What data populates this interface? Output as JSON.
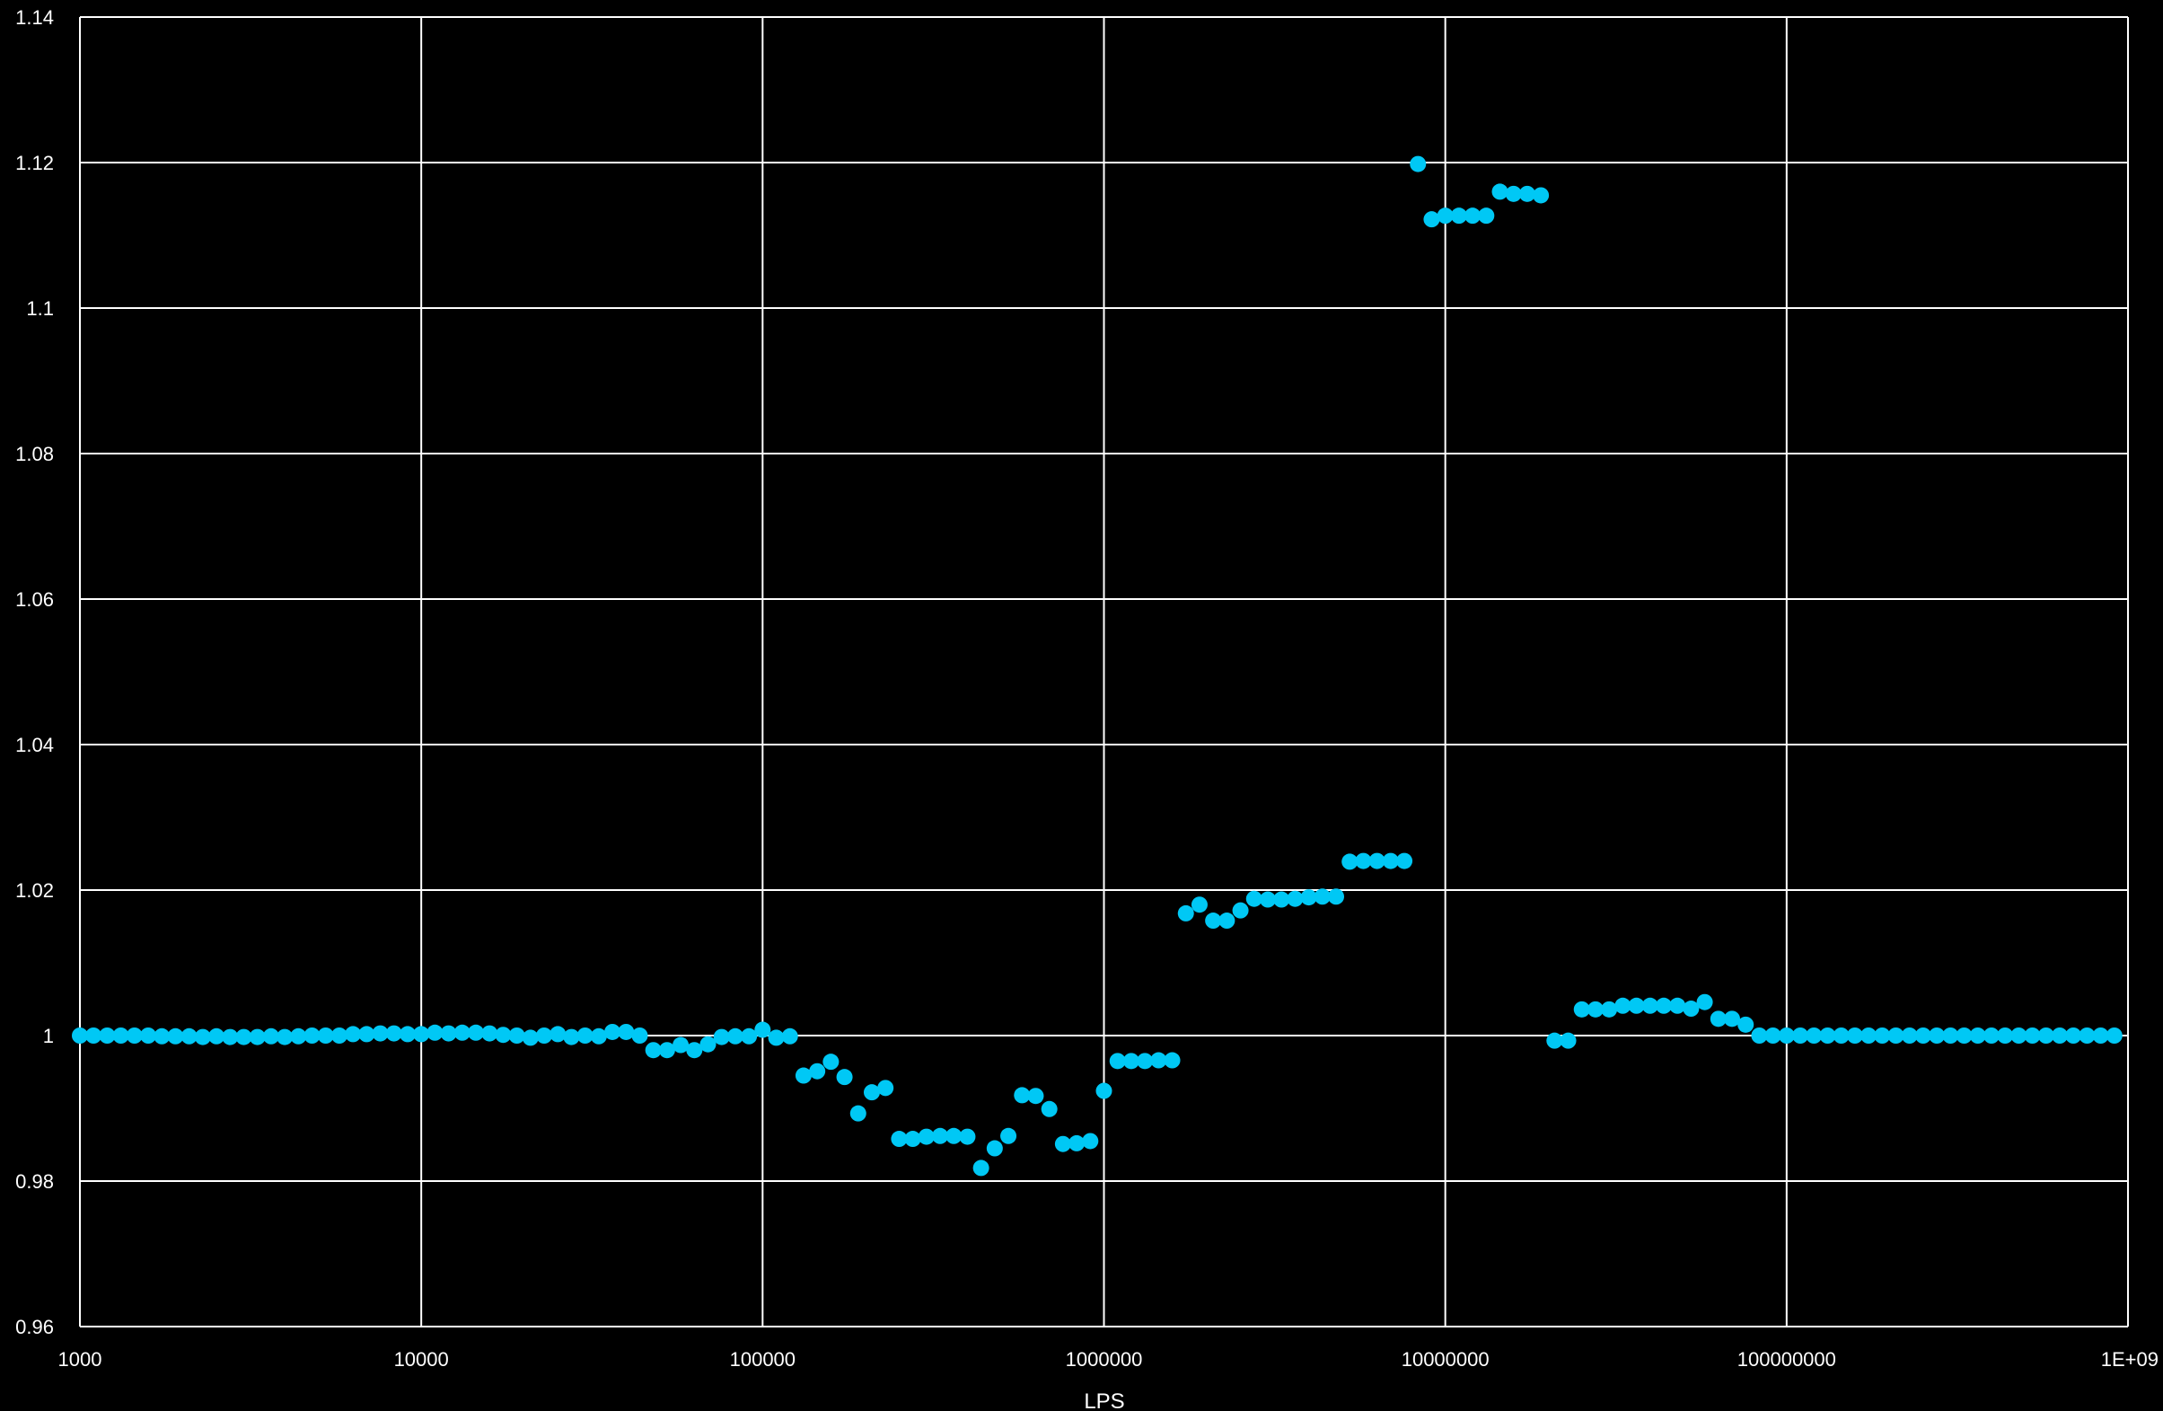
{
  "chart_data": {
    "type": "scatter",
    "title": "",
    "xlabel": "LPS",
    "ylabel": "",
    "x_scale": "log",
    "xlim": [
      1000,
      1000000000
    ],
    "ylim": [
      0.96,
      1.14
    ],
    "grid": true,
    "legend": "none",
    "marker_color": "#00c8f5",
    "background_color": "#000000",
    "grid_color": "#ffffff",
    "x_ticks": [
      {
        "value": 1000,
        "label": "1000"
      },
      {
        "value": 10000,
        "label": "10000"
      },
      {
        "value": 100000,
        "label": "100000"
      },
      {
        "value": 1000000,
        "label": "1000000"
      },
      {
        "value": 10000000,
        "label": "10000000"
      },
      {
        "value": 100000000,
        "label": "100000000"
      },
      {
        "value": 1000000000,
        "label": "1E+09"
      }
    ],
    "y_ticks": [
      {
        "value": 0.96,
        "label": "0.96"
      },
      {
        "value": 0.98,
        "label": "0.98"
      },
      {
        "value": 1.0,
        "label": "1"
      },
      {
        "value": 1.02,
        "label": "1.02"
      },
      {
        "value": 1.04,
        "label": "1.04"
      },
      {
        "value": 1.06,
        "label": "1.06"
      },
      {
        "value": 1.08,
        "label": "1.08"
      },
      {
        "value": 1.1,
        "label": "1.1"
      },
      {
        "value": 1.12,
        "label": "1.12"
      },
      {
        "value": 1.14,
        "label": "1.14"
      }
    ],
    "series": [
      {
        "x": [
          1000,
          1096,
          1202,
          1318,
          1445,
          1585,
          1738,
          1905,
          2089,
          2291,
          2512,
          2754,
          3020,
          3311,
          3631,
          3981,
          4365,
          4786,
          5248,
          5754,
          6310,
          6918,
          7586,
          8318,
          9120,
          10000,
          10965,
          12023,
          13183,
          14454,
          15849,
          17378,
          19055,
          20893,
          22909,
          25119,
          27542,
          30200,
          33113,
          36308,
          39811,
          43652,
          47863,
          52481,
          57544,
          63096,
          69183,
          75858,
          83176,
          91201,
          100000,
          109648,
          120226,
          131826,
          144544,
          158489,
          173780,
          190546,
          208930,
          229087,
          251189,
          275423,
          301995,
          331131,
          363078,
          398107,
          436516,
          478630,
          524807,
          575440,
          630957,
          691831,
          758578,
          831764,
          912011,
          1000000,
          1096478,
          1202264,
          1318257,
          1445440,
          1584893,
          1737801,
          1905461,
          2089296,
          2290868,
          2511886,
          2754229,
          3019952,
          3311311,
          3630781,
          3981072,
          4365158,
          4786301,
          5248075,
          5754399,
          6309573,
          6918310,
          7585776,
          8317638,
          9120108,
          10000000,
          10964782,
          12022644,
          13182567,
          14454398,
          15848932,
          17378008,
          19054607,
          20892961,
          22908677,
          25118864,
          27542287,
          30199517,
          33113112,
          36307805,
          39810717,
          43651583,
          47863009,
          52480746,
          57543994,
          63095734,
          69183097,
          75857758,
          83176377,
          91201084,
          100000000,
          109647820,
          120226443,
          131825674,
          144543977,
          158489319,
          173780083,
          190546072,
          208929613,
          229086765,
          251188643,
          275422870,
          301995172,
          331131121,
          363078055,
          398107171,
          436515832,
          478630092,
          524807460,
          575439937,
          630957344,
          691830971,
          758577575,
          831763771,
          912010839
        ],
        "y": [
          1.0,
          1.0,
          1.0,
          1.0,
          1.0,
          1.0,
          0.9999,
          0.9999,
          0.9999,
          0.9998,
          0.9999,
          0.9998,
          0.9998,
          0.9998,
          0.9999,
          0.9998,
          0.9999,
          1.0,
          1.0,
          1.0,
          1.0002,
          1.0002,
          1.0003,
          1.0003,
          1.0002,
          1.0002,
          1.0004,
          1.0003,
          1.0004,
          1.0004,
          1.0003,
          1.0001,
          1.0,
          0.9997,
          1.0,
          1.0002,
          0.9998,
          1.0,
          0.9999,
          1.0005,
          1.0005,
          1.0,
          0.998,
          0.998,
          0.9987,
          0.998,
          0.9988,
          0.9998,
          0.9999,
          0.9999,
          1.0008,
          0.9997,
          0.9999,
          0.9945,
          0.9951,
          0.9964,
          0.9943,
          0.9893,
          0.9922,
          0.9928,
          0.9858,
          0.9858,
          0.9861,
          0.9862,
          0.9862,
          0.9861,
          0.9818,
          0.9845,
          0.9862,
          0.9918,
          0.9917,
          0.9899,
          0.9851,
          0.9852,
          0.9855,
          0.9924,
          0.9965,
          0.9965,
          0.9965,
          0.9966,
          0.9966,
          1.0168,
          1.018,
          1.0158,
          1.0158,
          1.0172,
          1.0188,
          1.0187,
          1.0187,
          1.0188,
          1.019,
          1.0191,
          1.0191,
          1.0239,
          1.024,
          1.024,
          1.024,
          1.024,
          1.1198,
          1.1122,
          1.1127,
          1.1127,
          1.1127,
          1.1127,
          1.116,
          1.1157,
          1.1157,
          1.1155,
          0.9993,
          0.9993,
          1.0036,
          1.0036,
          1.0036,
          1.0041,
          1.0041,
          1.0041,
          1.0041,
          1.0041,
          1.0037,
          1.0046,
          1.0023,
          1.0023,
          1.0015,
          1.0,
          1.0,
          1.0,
          1.0,
          1.0,
          1.0,
          1.0,
          1.0,
          1.0,
          1.0,
          1.0,
          1.0,
          1.0,
          1.0,
          1.0,
          1.0,
          1.0,
          1.0,
          1.0,
          1.0,
          1.0,
          1.0,
          1.0,
          1.0,
          1.0,
          1.0,
          1.0
        ]
      }
    ]
  }
}
